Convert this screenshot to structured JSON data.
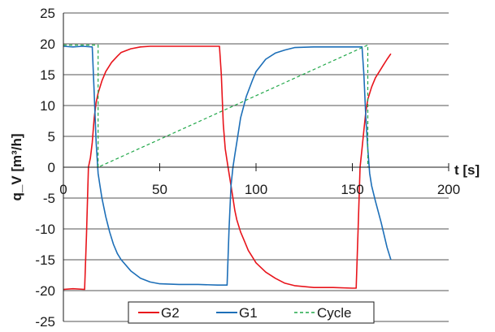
{
  "chart_data": {
    "type": "line",
    "title": "",
    "xlabel": "t [s]",
    "ylabel": "q_V [m³/h]",
    "xlim": [
      0,
      200
    ],
    "ylim": [
      -25,
      25
    ],
    "x_ticks": [
      0,
      50,
      100,
      150,
      200
    ],
    "y_ticks": [
      25,
      20,
      15,
      10,
      5,
      0,
      -5,
      -10,
      -15,
      -20,
      -25
    ],
    "grid": "horizontal",
    "legend_position": "bottom",
    "series": [
      {
        "name": "G2",
        "color": "#e8141b",
        "style": "solid",
        "x": [
          0,
          5,
          11,
          12,
          13,
          14,
          15,
          16,
          17,
          18,
          20,
          22,
          25,
          28,
          30,
          35,
          40,
          45,
          50,
          60,
          70,
          80,
          81,
          82,
          83,
          84,
          85,
          86,
          87,
          88,
          89,
          90,
          92,
          94,
          96,
          98,
          100,
          105,
          110,
          115,
          120,
          130,
          140,
          150,
          152,
          153,
          154,
          155,
          156,
          157,
          158,
          160,
          162,
          164,
          166,
          168,
          170
        ],
        "y": [
          -19.8,
          -19.7,
          -19.8,
          -11,
          0,
          1.5,
          4,
          8,
          10.5,
          12,
          14,
          15.5,
          17,
          18,
          18.6,
          19.2,
          19.5,
          19.6,
          19.6,
          19.6,
          19.6,
          19.6,
          19.6,
          15,
          7,
          3,
          1,
          -1,
          -3,
          -5,
          -7,
          -8.5,
          -10.5,
          -12,
          -13.5,
          -14.5,
          -15.5,
          -17,
          -18,
          -18.8,
          -19.2,
          -19.5,
          -19.5,
          -19.6,
          -19.6,
          -10,
          0,
          3,
          6,
          9,
          11,
          13,
          14.5,
          15.5,
          16.5,
          17.5,
          18.4
        ]
      },
      {
        "name": "G1",
        "color": "#1d6fb8",
        "style": "solid",
        "x": [
          0,
          5,
          10,
          15,
          16,
          17,
          18,
          19,
          20,
          22,
          24,
          26,
          28,
          30,
          35,
          40,
          45,
          50,
          60,
          70,
          80,
          85,
          86,
          87,
          88,
          89,
          90,
          92,
          95,
          98,
          100,
          105,
          110,
          115,
          120,
          130,
          140,
          150,
          155,
          156,
          157,
          158,
          159,
          160,
          162,
          165,
          168,
          170
        ],
        "y": [
          19.6,
          19.5,
          19.6,
          19.5,
          12,
          4,
          -1,
          -3,
          -5,
          -8,
          -10.5,
          -12.5,
          -14,
          -15,
          -16.8,
          -18,
          -18.6,
          -18.9,
          -19,
          -19,
          -19.1,
          -19.1,
          -10,
          -3,
          0,
          2,
          4,
          8,
          11.5,
          14,
          15.5,
          17.5,
          18.5,
          19,
          19.4,
          19.5,
          19.5,
          19.5,
          19.5,
          15,
          8,
          3,
          -1,
          -3,
          -5.5,
          -9,
          -13,
          -15
        ]
      },
      {
        "name": "Cycle",
        "color": "#22a84a",
        "style": "dashed",
        "x": [
          0,
          18,
          18,
          158,
          158
        ],
        "y": [
          19.8,
          19.8,
          0,
          19.8,
          0
        ]
      }
    ]
  }
}
